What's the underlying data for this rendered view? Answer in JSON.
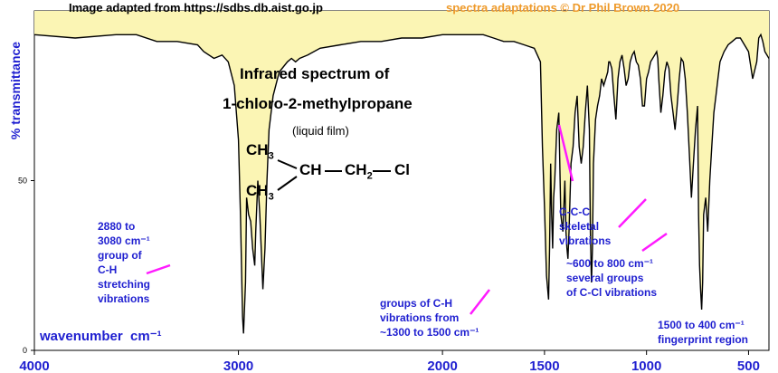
{
  "credits": {
    "source": "Image adapted from https://sdbs.db.aist.go.jp",
    "author": "spectra adaptations © Dr Phil Brown 2020"
  },
  "title_line1": "Infrared spectrum of",
  "title_line2": "1-chloro-2-methylpropane",
  "subtitle": "(liquid film)",
  "structure": {
    "top_group": "CH",
    "top_sub": "3",
    "bottom_group": "CH",
    "bottom_sub": "3",
    "center_group": "CH",
    "ch2_group": "CH",
    "ch2_sub": "2",
    "chlorine": "Cl"
  },
  "annotations": {
    "ch_stretch_line1": "2880 to",
    "ch_stretch_line2": "3080 cm⁻¹",
    "ch_stretch_line3": "group of",
    "ch_stretch_line4": "C-H",
    "ch_stretch_line5": "stretching",
    "ch_stretch_line6": "vibrations",
    "ch_bend_line1": "groups of C-H",
    "ch_bend_line2": "vibrations from",
    "ch_bend_line3": "~1300 to 1500 cm⁻¹",
    "ccc_line1": "C-C-C",
    "ccc_line2": "skeletal",
    "ccc_line3": "vibrations",
    "ccl_line1": "~600 to 800 cm⁻¹",
    "ccl_line2": "several groups",
    "ccl_line3": "of C-Cl vibrations",
    "finger_line1": "1500 to 400 cm⁻¹",
    "finger_line2": "fingerprint region"
  },
  "axis_labels": {
    "wavenumber_word": "wavenumber",
    "wavenumber_unit": "cm⁻¹"
  },
  "colors": {
    "spectrum_line": "#000000",
    "fill_above": "#fbf5b4",
    "annotation_text": "#1f1fd0",
    "pointer": "#ff1aff",
    "axis_text": "#1f1fd0",
    "credit_right": "#ee9a2a"
  },
  "chart_data": {
    "type": "line",
    "xlabel": "wavenumber cm⁻¹",
    "ylabel": "% transmittance",
    "xlim": [
      4000,
      400
    ],
    "ylim": [
      0,
      100
    ],
    "x_ticks": [
      4000,
      3000,
      2000,
      1500,
      1000,
      500
    ],
    "y_ticks": [
      0,
      50
    ],
    "grid": false,
    "fill": "above curve",
    "x": [
      4000,
      3800,
      3600,
      3500,
      3400,
      3300,
      3200,
      3170,
      3120,
      3080,
      3050,
      3020,
      3000,
      2990,
      2980,
      2975,
      2965,
      2960,
      2950,
      2940,
      2930,
      2920,
      2915,
      2905,
      2895,
      2880,
      2870,
      2860,
      2850,
      2830,
      2800,
      2760,
      2740,
      2720,
      2700,
      2660,
      2600,
      2500,
      2400,
      2300,
      2200,
      2100,
      2000,
      1900,
      1800,
      1750,
      1700,
      1650,
      1600,
      1550,
      1520,
      1510,
      1500,
      1490,
      1480,
      1475,
      1470,
      1465,
      1460,
      1455,
      1450,
      1440,
      1430,
      1420,
      1410,
      1400,
      1395,
      1390,
      1385,
      1380,
      1375,
      1370,
      1360,
      1350,
      1340,
      1330,
      1320,
      1310,
      1300,
      1290,
      1280,
      1275,
      1270,
      1265,
      1260,
      1250,
      1240,
      1230,
      1220,
      1210,
      1200,
      1190,
      1185,
      1180,
      1170,
      1160,
      1150,
      1140,
      1130,
      1120,
      1110,
      1100,
      1090,
      1080,
      1070,
      1060,
      1050,
      1040,
      1030,
      1020,
      1010,
      1000,
      990,
      980,
      960,
      950,
      945,
      940,
      930,
      920,
      910,
      900,
      890,
      880,
      870,
      860,
      850,
      840,
      830,
      820,
      810,
      800,
      790,
      780,
      770,
      760,
      750,
      745,
      740,
      735,
      730,
      725,
      720,
      710,
      700,
      690,
      680,
      670,
      660,
      650,
      640,
      620,
      600,
      580,
      560,
      540,
      520,
      500,
      480,
      460,
      450,
      440,
      430,
      420,
      400
    ],
    "y": [
      93,
      92,
      93,
      93,
      91,
      91,
      90,
      88,
      86,
      87,
      85,
      78,
      62,
      40,
      10,
      5,
      20,
      45,
      40,
      38,
      30,
      25,
      35,
      50,
      40,
      18,
      30,
      50,
      65,
      75,
      82,
      85,
      86,
      85,
      86,
      87,
      89,
      90,
      91,
      91,
      92,
      92,
      93,
      93,
      93,
      92,
      91,
      91,
      90,
      89,
      85,
      60,
      42,
      22,
      15,
      30,
      55,
      40,
      30,
      45,
      50,
      65,
      70,
      40,
      35,
      50,
      35,
      30,
      27,
      35,
      45,
      55,
      60,
      70,
      75,
      60,
      55,
      60,
      70,
      78,
      65,
      35,
      20,
      30,
      55,
      68,
      72,
      75,
      80,
      78,
      80,
      82,
      85,
      85,
      83,
      75,
      68,
      80,
      85,
      87,
      83,
      78,
      80,
      85,
      87,
      88,
      85,
      84,
      80,
      72,
      72,
      80,
      82,
      85,
      87,
      88,
      86,
      80,
      70,
      75,
      82,
      85,
      83,
      75,
      70,
      65,
      72,
      80,
      86,
      85,
      80,
      70,
      58,
      45,
      55,
      65,
      72,
      40,
      25,
      18,
      12,
      20,
      40,
      45,
      35,
      50,
      60,
      70,
      75,
      80,
      85,
      88,
      90,
      91,
      92,
      92,
      90,
      88,
      80,
      85,
      92,
      93,
      91,
      88,
      86
    ]
  }
}
